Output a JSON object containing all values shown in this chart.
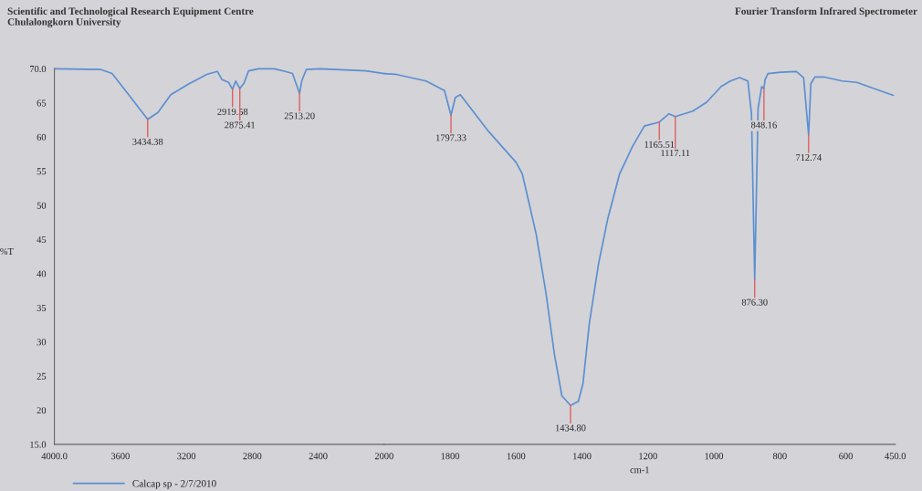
{
  "chart_data": [
    {
      "type": "line",
      "title": "Scientific and Technological Research Equipment Centre\nChulalongkorn University",
      "ylabel": "%T",
      "xlim": [
        4000,
        2000
      ],
      "ylim": [
        15,
        70
      ],
      "xticks": [
        {
          "value": 4000,
          "label": "4000.0"
        },
        3600,
        3200,
        2800,
        2400,
        2000
      ],
      "yticks": [
        {
          "value": 15,
          "label": "15.0"
        },
        20,
        25,
        30,
        35,
        40,
        45,
        50,
        55,
        60,
        65,
        {
          "value": 70,
          "label": "70.0"
        }
      ],
      "legend": "bottom left",
      "line_style": "solid",
      "grid": false,
      "marker": "none",
      "series": [
        {
          "name": "Calcap sp - 2/7/2010",
          "color": "#5b8fd0",
          "x": [
            4000,
            3722,
            3650,
            3556,
            3434.38,
            3372,
            3294,
            3183,
            3072,
            3011,
            2983,
            2944,
            2919.58,
            2900,
            2875.41,
            2850,
            2822,
            2761,
            2667,
            2600,
            2556,
            2513.2,
            2500,
            2472,
            2389,
            2111,
            2000
          ],
          "values": [
            70.0,
            69.9,
            69.3,
            66.4,
            62.6,
            63.6,
            66.2,
            67.8,
            69.2,
            69.6,
            68.4,
            68.0,
            67.0,
            68.2,
            67.1,
            67.9,
            69.7,
            70.0,
            70.0,
            69.6,
            69.3,
            66.4,
            68.2,
            69.9,
            70.0,
            69.7,
            69.3
          ]
        }
      ],
      "annotations": [
        {
          "text": "3434.38",
          "x": 3434.38,
          "y": 62.6
        },
        {
          "text": "2919.58",
          "x": 2919.58,
          "y": 67.0
        },
        {
          "text": "2875.41",
          "x": 2875.41,
          "y": 67.1
        },
        {
          "text": "2513.20",
          "x": 2513.2,
          "y": 66.4
        }
      ]
    },
    {
      "type": "line",
      "title": "Fourier Transform Infrared Spectrometer",
      "xlabel": "cm-1",
      "xlim": [
        2000,
        450
      ],
      "ylim": [
        15,
        70
      ],
      "xticks": [
        1800,
        1600,
        1400,
        1200,
        1000,
        800,
        600,
        {
          "value": 450,
          "label": "450.0"
        }
      ],
      "tick_labels": "x",
      "line_style": "solid",
      "grid": false,
      "marker": "none",
      "series": [
        {
          "color": "#5b8fd0",
          "x": [
            2000,
            1967,
            1873,
            1817,
            1797.33,
            1784,
            1769,
            1683,
            1600,
            1581,
            1539,
            1509,
            1484,
            1461,
            1434.8,
            1411,
            1397,
            1378,
            1350,
            1322,
            1286,
            1247,
            1211,
            1165.51,
            1136,
            1117.11,
            1064,
            1022,
            978,
            950,
            922,
            897,
            886,
            876.3,
            866,
            855,
            848.16,
            845,
            836,
            797,
            750,
            728,
            712.74,
            706,
            694,
            667,
            611,
            567,
            456
          ],
          "values": [
            69.3,
            69.2,
            68.2,
            66.8,
            63.2,
            65.8,
            66.2,
            60.8,
            56.3,
            54.6,
            45.8,
            37.1,
            28.3,
            22.1,
            20.7,
            21.3,
            23.9,
            32.6,
            41.4,
            48.0,
            54.6,
            58.6,
            61.6,
            62.2,
            63.4,
            63.0,
            63.8,
            65.1,
            67.4,
            68.2,
            68.7,
            68.2,
            63.4,
            39.1,
            64.2,
            67.4,
            67.1,
            68.4,
            69.3,
            69.5,
            69.6,
            68.7,
            60.3,
            67.8,
            68.8,
            68.8,
            68.2,
            68.0,
            66.1
          ]
        }
      ],
      "annotations": [
        {
          "text": "1797.33",
          "x": 1797.33,
          "y": 63.2
        },
        {
          "text": "1434.80",
          "x": 1434.8,
          "y": 20.7
        },
        {
          "text": "1165.51",
          "x": 1165.51,
          "y": 62.2
        },
        {
          "text": "1117.11",
          "x": 1117.11,
          "y": 63.0
        },
        {
          "text": "876.30",
          "x": 876.3,
          "y": 39.1
        },
        {
          "text": "848.16",
          "x": 848.16,
          "y": 67.1
        },
        {
          "text": "712.74",
          "x": 712.74,
          "y": 60.3
        }
      ]
    }
  ]
}
